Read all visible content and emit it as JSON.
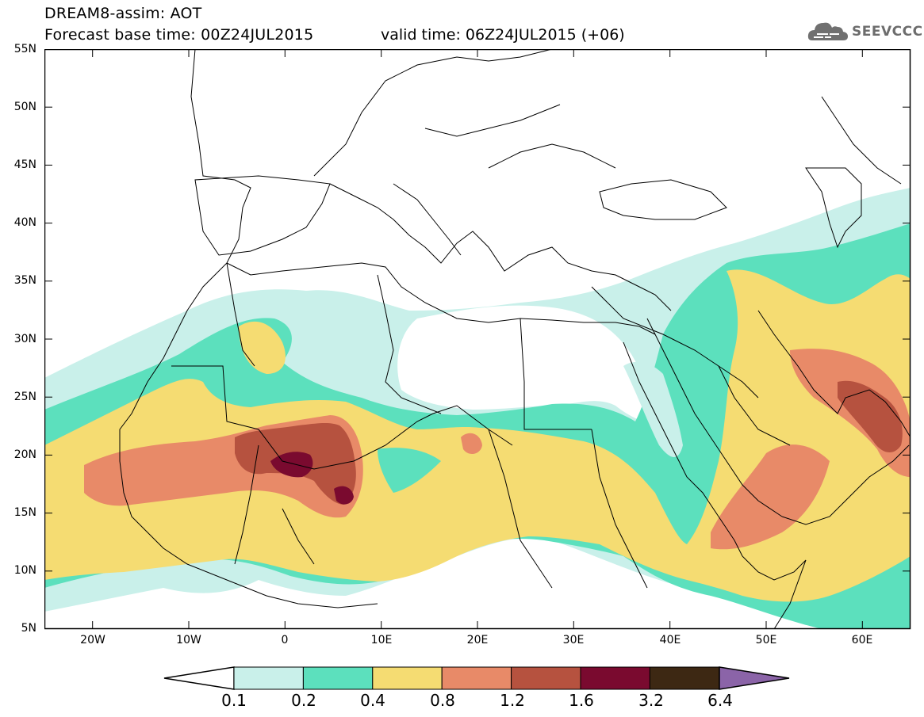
{
  "header": {
    "title_line1": "DREAM8-assim: AOT",
    "title_line2": "Forecast base time: 00Z24JUL2015",
    "valid_time": "valid time: 06Z24JUL2015 (+06)",
    "logo_text": "SEEVCCC"
  },
  "map": {
    "lat_labels": [
      "55N",
      "50N",
      "45N",
      "40N",
      "35N",
      "30N",
      "25N",
      "20N",
      "15N",
      "10N",
      "5N"
    ],
    "lon_labels": [
      "20W",
      "10W",
      "0",
      "10E",
      "20E",
      "30E",
      "40E",
      "50E",
      "60E"
    ],
    "extent": {
      "lon_min": -25,
      "lon_max": 65,
      "lat_min": 5,
      "lat_max": 55
    }
  },
  "legend": {
    "levels": [
      "0.1",
      "0.2",
      "0.4",
      "0.8",
      "1.2",
      "1.6",
      "3.2",
      "6.4"
    ],
    "colors": [
      "#c9f0ea",
      "#5ce0bd",
      "#f5dc72",
      "#e88a68",
      "#b6523f",
      "#7a0a2f",
      "#3d2813",
      "#8b64a8"
    ]
  },
  "colors": {
    "very_light": "#c9f0ea",
    "teal": "#5ce0bd",
    "yellow": "#f5dc72",
    "orange": "#e88a68",
    "brown_red": "#b6523f",
    "dark_red": "#7a0a2f"
  }
}
